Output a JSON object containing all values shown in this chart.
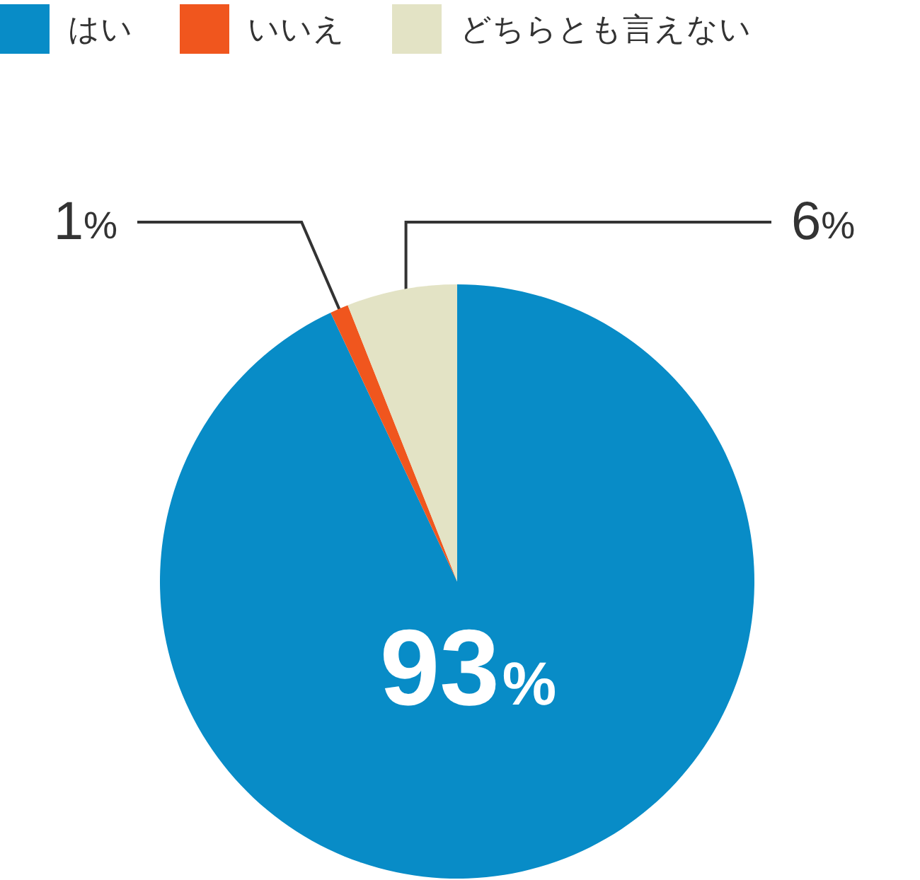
{
  "chart_data": {
    "type": "pie",
    "categories": [
      "はい",
      "いいえ",
      "どちらとも言えない"
    ],
    "values": [
      93,
      1,
      6
    ],
    "colors": [
      "#088cc7",
      "#f0561e",
      "#e3e3c5"
    ],
    "value_labels": [
      "93%",
      "1%",
      "6%"
    ],
    "legend": "top left"
  }
}
